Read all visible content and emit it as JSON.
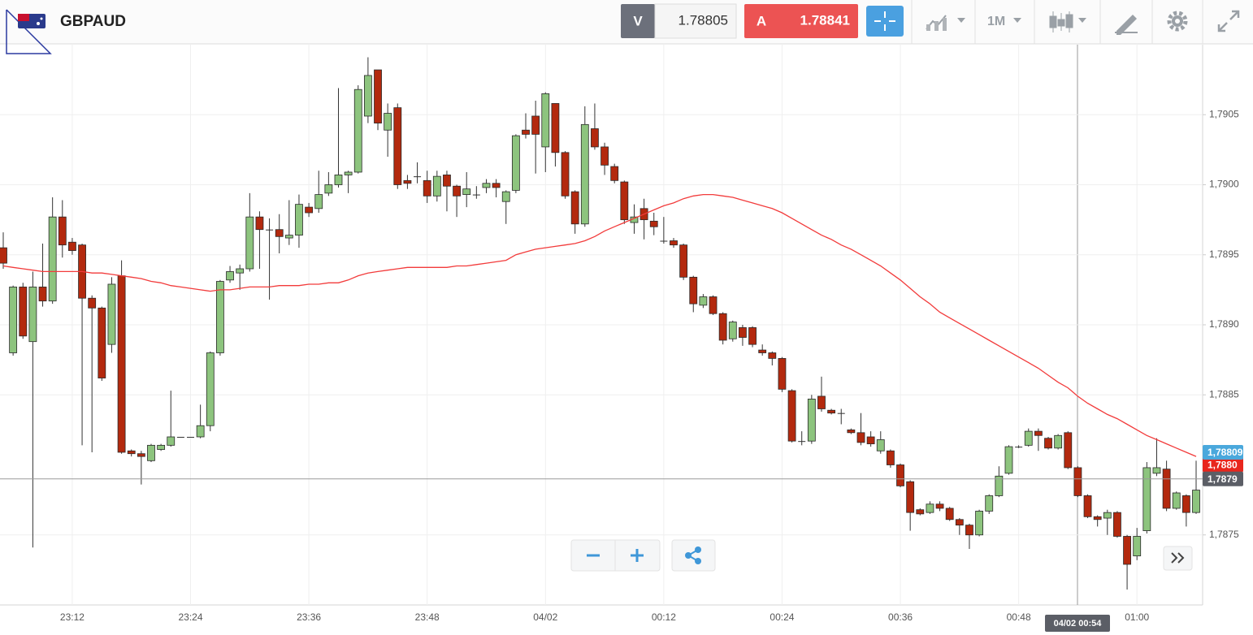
{
  "toolbar": {
    "symbol": "GBPAUD",
    "sell_label": "V",
    "sell_price": "1.78805",
    "buy_label": "A",
    "buy_price": "1.78841",
    "timeframe": "1M"
  },
  "chart_data": {
    "type": "candlestick",
    "categories": [
      null,
      null,
      null,
      null,
      null,
      null,
      null,
      "23:12",
      null,
      null,
      null,
      null,
      null,
      null,
      null,
      null,
      null,
      null,
      null,
      "23:24",
      null,
      null,
      null,
      null,
      null,
      null,
      null,
      null,
      null,
      null,
      null,
      "23:36",
      null,
      null,
      null,
      null,
      null,
      null,
      null,
      null,
      null,
      null,
      null,
      "23:48",
      null,
      null,
      null,
      null,
      null,
      null,
      null,
      null,
      null,
      null,
      null,
      "04/02",
      null,
      null,
      null,
      null,
      null,
      null,
      null,
      null,
      null,
      null,
      null,
      "00:12",
      null,
      null,
      null,
      null,
      null,
      null,
      null,
      null,
      null,
      null,
      null,
      "00:24",
      null,
      null,
      null,
      null,
      null,
      null,
      null,
      null,
      null,
      null,
      null,
      "00:36",
      null,
      null,
      null,
      null,
      null,
      null,
      null,
      null,
      null,
      null,
      null,
      "00:48",
      null,
      null,
      null,
      null,
      null,
      null,
      null,
      null,
      null,
      null,
      null,
      "01:00",
      null,
      null,
      null,
      null,
      null,
      null
    ],
    "open": [
      1.78955,
      1.7888,
      1.78927,
      1.78888,
      1.78927,
      1.78917,
      1.78977,
      1.78959,
      1.78957,
      1.78919,
      1.78912,
      1.78886,
      1.78935,
      1.7881,
      1.78808,
      1.78803,
      1.78811,
      1.78814,
      1.7882,
      1.7882,
      1.7882,
      1.78828,
      1.7888,
      1.78932,
      1.78937,
      1.7894,
      1.78977,
      1.78968,
      1.78968,
      1.78962,
      1.78964,
      1.78984,
      1.78983,
      1.78994,
      1.79,
      1.79007,
      1.79009,
      1.79049,
      1.79082,
      1.79039,
      1.79055,
      1.79003,
      1.79006,
      1.79003,
      1.78992,
      1.79007,
      1.78999,
      1.78993,
      1.78993,
      1.78998,
      1.79001,
      1.78988,
      1.78996,
      1.79039,
      1.79049,
      1.79027,
      1.79058,
      1.79023,
      1.78995,
      1.78972,
      1.7904,
      1.79027,
      1.79013,
      1.79002,
      1.78973,
      1.78983,
      1.78974,
      1.7896,
      1.7896,
      1.78957,
      1.78934,
      1.78914,
      1.7892,
      1.78908,
      1.7889,
      1.78898,
      1.78898,
      1.78882,
      1.7888,
      1.78876,
      1.78853,
      1.78817,
      1.78817,
      1.78849,
      1.78839,
      1.78837,
      1.78825,
      1.78823,
      1.7882,
      1.7881,
      1.7881,
      1.788,
      1.78788,
      1.78768,
      1.78766,
      1.78772,
      1.78769,
      1.78761,
      1.78757,
      1.7875,
      1.78767,
      1.78778,
      1.78794,
      1.78813,
      1.78814,
      1.78824,
      1.78819,
      1.78812,
      1.78823,
      1.78798,
      1.78778,
      1.78763,
      1.78762,
      1.78766,
      1.78749,
      1.78735,
      1.78753,
      1.78794,
      1.78797,
      1.78769,
      1.78778,
      1.78766
    ],
    "high": [
      1.78966,
      1.78928,
      1.7893,
      1.78938,
      1.78958,
      1.78991,
      1.78989,
      1.78962,
      1.78958,
      1.78921,
      1.78913,
      1.78934,
      1.78946,
      1.78811,
      1.7881,
      1.78815,
      1.78815,
      1.78853,
      1.7882,
      1.7882,
      1.78843,
      1.78881,
      1.78932,
      1.78942,
      1.78943,
      1.78994,
      1.78981,
      1.78976,
      1.78979,
      1.78989,
      1.78993,
      1.78987,
      1.7901,
      1.79009,
      1.79069,
      1.7901,
      1.79071,
      1.79091,
      1.79082,
      1.79058,
      1.79058,
      1.79007,
      1.79016,
      1.7901,
      1.7901,
      1.7901,
      1.79,
      1.79009,
      1.78999,
      1.79004,
      1.79004,
      1.78996,
      1.79036,
      1.79051,
      1.7906,
      1.79066,
      1.79058,
      1.79024,
      1.78996,
      1.79056,
      1.79058,
      1.7903,
      1.79015,
      1.79003,
      1.78986,
      1.7899,
      1.7898,
      1.78977,
      1.78962,
      1.78958,
      1.78935,
      1.78922,
      1.78921,
      1.78909,
      1.78903,
      1.789,
      1.78899,
      1.78886,
      1.78881,
      1.78877,
      1.78854,
      1.78824,
      1.7885,
      1.78863,
      1.7884,
      1.7884,
      1.78826,
      1.78837,
      1.78824,
      1.78824,
      1.78811,
      1.78801,
      1.78789,
      1.78769,
      1.78774,
      1.78774,
      1.7877,
      1.78762,
      1.78758,
      1.78768,
      1.78779,
      1.78799,
      1.78814,
      1.78814,
      1.78826,
      1.78826,
      1.7882,
      1.78822,
      1.78824,
      1.78799,
      1.78779,
      1.78764,
      1.78768,
      1.78767,
      1.7875,
      1.78755,
      1.78802,
      1.78819,
      1.78803,
      1.78781,
      1.78779,
      1.78803
    ],
    "low": [
      1.7894,
      1.78878,
      1.7889,
      1.78741,
      1.78913,
      1.78915,
      1.78948,
      1.7895,
      1.78814,
      1.78809,
      1.7886,
      1.7888,
      1.78808,
      1.78806,
      1.78786,
      1.78802,
      1.7881,
      1.78813,
      1.7882,
      1.7882,
      1.78819,
      1.78824,
      1.78878,
      1.7893,
      1.78925,
      1.78938,
      1.7894,
      1.78918,
      1.78951,
      1.78957,
      1.78955,
      1.78977,
      1.7898,
      1.78992,
      1.78998,
      1.78994,
      1.79008,
      1.79044,
      1.79039,
      1.7902,
      1.78997,
      1.78997,
      1.79001,
      1.78987,
      1.78988,
      1.78981,
      1.78977,
      1.78984,
      1.7899,
      1.78994,
      1.78991,
      1.78972,
      1.78994,
      1.79033,
      1.79008,
      1.79009,
      1.79013,
      1.7899,
      1.78965,
      1.7897,
      1.79025,
      1.79007,
      1.79001,
      1.78972,
      1.78965,
      1.78961,
      1.78964,
      1.78958,
      1.78955,
      1.78932,
      1.78909,
      1.78912,
      1.78907,
      1.78886,
      1.78888,
      1.78885,
      1.78884,
      1.78878,
      1.78871,
      1.78852,
      1.78816,
      1.78814,
      1.78815,
      1.78838,
      1.78836,
      1.78829,
      1.78822,
      1.78814,
      1.78813,
      1.78808,
      1.78798,
      1.78784,
      1.78753,
      1.78764,
      1.78765,
      1.78767,
      1.7876,
      1.7875,
      1.7874,
      1.78749,
      1.78765,
      1.78777,
      1.78793,
      1.78812,
      1.78813,
      1.7881,
      1.78811,
      1.78811,
      1.78797,
      1.78777,
      1.78762,
      1.78756,
      1.7875,
      1.78748,
      1.78711,
      1.78732,
      1.78751,
      1.78792,
      1.78767,
      1.78768,
      1.78756,
      1.78765
    ],
    "close": [
      1.78944,
      1.78927,
      1.78892,
      1.78927,
      1.78917,
      1.78977,
      1.78957,
      1.78953,
      1.78919,
      1.78912,
      1.78862,
      1.78929,
      1.78809,
      1.78808,
      1.78806,
      1.78814,
      1.78814,
      1.7882,
      1.7882,
      1.7882,
      1.78828,
      1.7888,
      1.78931,
      1.78938,
      1.7894,
      1.78977,
      1.78968,
      1.78968,
      1.78963,
      1.78964,
      1.78986,
      1.7898,
      1.78993,
      1.79,
      1.79007,
      1.79009,
      1.79068,
      1.79078,
      1.79044,
      1.79051,
      1.79,
      1.79001,
      1.79006,
      1.78992,
      1.79006,
      1.78999,
      1.78992,
      1.78997,
      1.78993,
      1.79001,
      1.78998,
      1.78995,
      1.79035,
      1.79036,
      1.79036,
      1.79065,
      1.79023,
      1.78992,
      1.78972,
      1.79043,
      1.79027,
      1.79014,
      1.79003,
      1.78975,
      1.78977,
      1.78975,
      1.7897,
      1.7896,
      1.78957,
      1.78934,
      1.78915,
      1.7892,
      1.78908,
      1.78889,
      1.78902,
      1.78891,
      1.78886,
      1.7888,
      1.78876,
      1.78854,
      1.78817,
      1.78817,
      1.78847,
      1.7884,
      1.78837,
      1.78837,
      1.78823,
      1.78816,
      1.78815,
      1.78818,
      1.788,
      1.78785,
      1.78766,
      1.78765,
      1.78772,
      1.78769,
      1.78761,
      1.78757,
      1.7875,
      1.78767,
      1.78778,
      1.78792,
      1.78813,
      1.78813,
      1.78824,
      1.78821,
      1.78812,
      1.78821,
      1.78798,
      1.78778,
      1.78763,
      1.78761,
      1.78766,
      1.78749,
      1.78729,
      1.78749,
      1.78798,
      1.78798,
      1.78769,
      1.7878,
      1.78766,
      1.78782
    ],
    "up_color": "#8dc47e",
    "down_color": "#b3290e",
    "overlay": {
      "color": "#f23b3b",
      "values": [
        1.78942,
        1.78941,
        1.7894,
        1.78939,
        1.78938,
        1.78938,
        1.78938,
        1.78938,
        1.78938,
        1.78937,
        1.78937,
        1.78936,
        1.78935,
        1.78934,
        1.78933,
        1.78931,
        1.7893,
        1.78928,
        1.78927,
        1.78926,
        1.78925,
        1.78924,
        1.78925,
        1.78925,
        1.78926,
        1.78927,
        1.78927,
        1.78927,
        1.78928,
        1.78928,
        1.78928,
        1.78929,
        1.78929,
        1.7893,
        1.7893,
        1.78932,
        1.78935,
        1.78937,
        1.78938,
        1.78939,
        1.7894,
        1.78941,
        1.78941,
        1.78941,
        1.78941,
        1.78941,
        1.78942,
        1.78942,
        1.78943,
        1.78944,
        1.78945,
        1.78946,
        1.7895,
        1.78952,
        1.78954,
        1.78955,
        1.78956,
        1.78957,
        1.78958,
        1.7896,
        1.78963,
        1.78967,
        1.7897,
        1.78973,
        1.78976,
        1.78979,
        1.78982,
        1.78985,
        1.78987,
        1.7899,
        1.78992,
        1.78993,
        1.78993,
        1.78992,
        1.78991,
        1.78989,
        1.78987,
        1.78985,
        1.78983,
        1.7898,
        1.78976,
        1.78972,
        1.78968,
        1.78964,
        1.78961,
        1.78957,
        1.78954,
        1.7895,
        1.78946,
        1.78942,
        1.78937,
        1.78932,
        1.78926,
        1.7892,
        1.78915,
        1.78909,
        1.78905,
        1.78901,
        1.78897,
        1.78893,
        1.78889,
        1.78885,
        1.78881,
        1.78877,
        1.78873,
        1.78869,
        1.78864,
        1.78859,
        1.78855,
        1.78849,
        1.78844,
        1.7884,
        1.78836,
        1.78833,
        1.78829,
        1.78825,
        1.78821,
        1.78818,
        1.78815,
        1.78812,
        1.78809,
        1.78806
      ]
    },
    "ylim": [
      1.787,
      1.791
    ],
    "yticks": [
      {
        "value": 1.7875,
        "label": "1,7875"
      },
      {
        "value": 1.7885,
        "label": "1,7885"
      },
      {
        "value": 1.789,
        "label": "1,7890"
      },
      {
        "value": 1.7895,
        "label": "1,7895"
      },
      {
        "value": 1.79,
        "label": "1,7900"
      },
      {
        "value": 1.7905,
        "label": "1,7905"
      }
    ],
    "grid": true,
    "price_tags": [
      {
        "value": 1.788,
        "label": "1,7880",
        "color": "#e8261d"
      },
      {
        "value": 1.78809,
        "label": "1,78809",
        "color": "#4aa8dc"
      },
      {
        "value": 1.7879,
        "label": "1,7879",
        "color": "#5b5e66"
      }
    ],
    "crosshair_label": "04/02 00:54"
  }
}
